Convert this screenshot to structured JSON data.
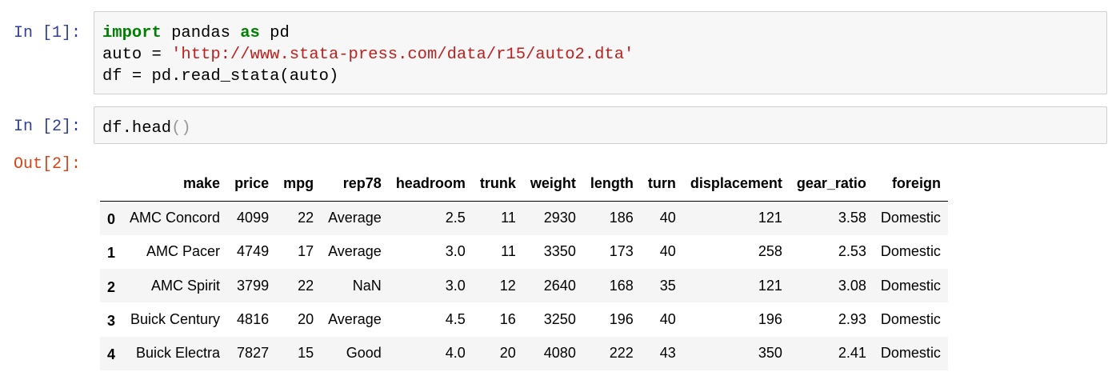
{
  "cells": [
    {
      "prompt": "In [1]:",
      "code": {
        "line1": {
          "kw_import": "import",
          "t1": " pandas ",
          "kw_as": "as",
          "t2": " pd"
        },
        "line2": {
          "t1": "auto = ",
          "str": "'http://www.stata-press.com/data/r15/auto2.dta'"
        },
        "line3": {
          "t1": "df = pd.read_stata(auto)"
        }
      }
    },
    {
      "prompt": "In [2]:",
      "code": {
        "t1": "df.head",
        "paren": "()"
      }
    }
  ],
  "output": {
    "prompt": "Out[2]:",
    "columns": [
      "make",
      "price",
      "mpg",
      "rep78",
      "headroom",
      "trunk",
      "weight",
      "length",
      "turn",
      "displacement",
      "gear_ratio",
      "foreign"
    ],
    "rows": [
      {
        "index": "0",
        "values": [
          "AMC Concord",
          "4099",
          "22",
          "Average",
          "2.5",
          "11",
          "2930",
          "186",
          "40",
          "121",
          "3.58",
          "Domestic"
        ]
      },
      {
        "index": "1",
        "values": [
          "AMC Pacer",
          "4749",
          "17",
          "Average",
          "3.0",
          "11",
          "3350",
          "173",
          "40",
          "258",
          "2.53",
          "Domestic"
        ]
      },
      {
        "index": "2",
        "values": [
          "AMC Spirit",
          "3799",
          "22",
          "NaN",
          "3.0",
          "12",
          "2640",
          "168",
          "35",
          "121",
          "3.08",
          "Domestic"
        ]
      },
      {
        "index": "3",
        "values": [
          "Buick Century",
          "4816",
          "20",
          "Average",
          "4.5",
          "16",
          "3250",
          "196",
          "40",
          "196",
          "2.93",
          "Domestic"
        ]
      },
      {
        "index": "4",
        "values": [
          "Buick Electra",
          "7827",
          "15",
          "Good",
          "4.0",
          "20",
          "4080",
          "222",
          "43",
          "350",
          "2.41",
          "Domestic"
        ]
      }
    ]
  },
  "colors": {
    "in_prompt": "#303f9f",
    "out_prompt": "#d84315",
    "keyword": "#008000",
    "string": "#ba2121",
    "cell_background": "#f7f7f7",
    "stripe": "#f5f5f5"
  }
}
